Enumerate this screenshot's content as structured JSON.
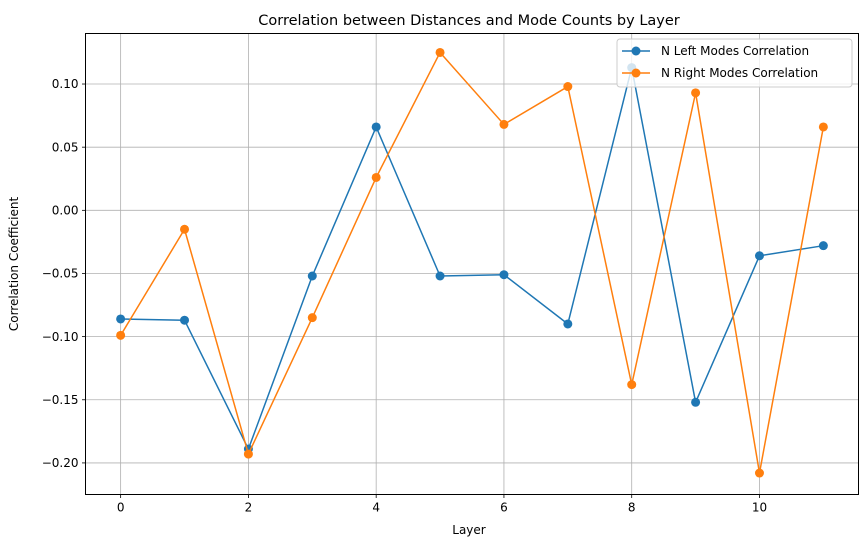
{
  "chart_data": {
    "type": "line",
    "title": "Correlation between Distances and Mode Counts by Layer",
    "xlabel": "Layer",
    "ylabel": "Correlation Coefficient",
    "x": [
      0,
      1,
      2,
      3,
      4,
      5,
      6,
      7,
      8,
      9,
      10,
      11
    ],
    "xlim": [
      -0.55,
      11.55
    ],
    "ylim": [
      -0.225,
      0.14
    ],
    "xticks": [
      0,
      2,
      4,
      6,
      8,
      10
    ],
    "yticks": [
      -0.2,
      -0.15,
      -0.1,
      -0.05,
      0.0,
      0.05,
      0.1
    ],
    "ytick_labels": [
      "−0.20",
      "−0.15",
      "−0.10",
      "−0.05",
      "0.00",
      "0.05",
      "0.10"
    ],
    "grid": true,
    "legend_position": "top-right",
    "series": [
      {
        "name": "N Left Modes Correlation",
        "color": "#1f77b4",
        "marker": "circle",
        "values": [
          -0.086,
          -0.087,
          -0.189,
          -0.052,
          0.066,
          -0.052,
          -0.051,
          -0.09,
          0.113,
          -0.152,
          -0.036,
          -0.028
        ]
      },
      {
        "name": "N Right Modes Correlation",
        "color": "#ff7f0e",
        "marker": "circle",
        "values": [
          -0.099,
          -0.015,
          -0.193,
          -0.085,
          0.026,
          0.125,
          0.068,
          0.098,
          -0.138,
          0.093,
          -0.208,
          0.066
        ]
      }
    ]
  }
}
